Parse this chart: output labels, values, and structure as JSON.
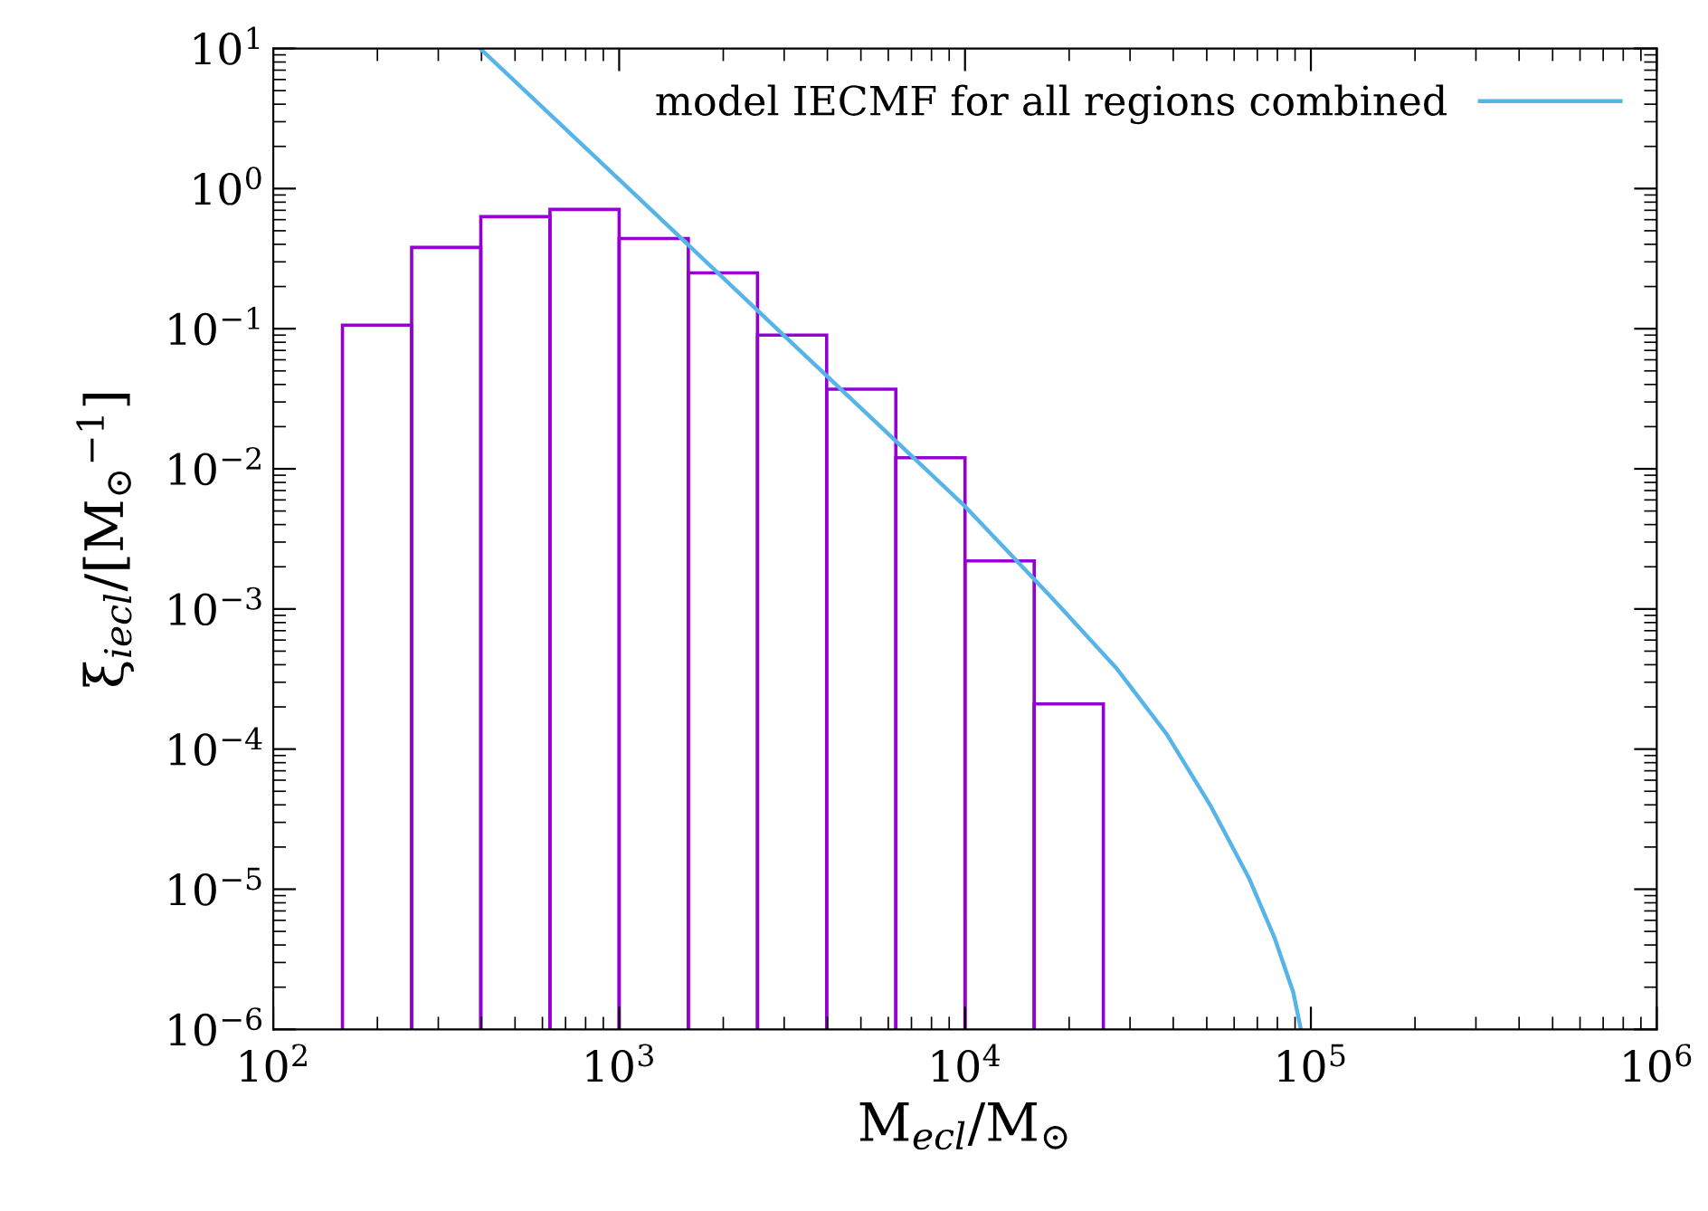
{
  "chart_data": {
    "type": "histogram",
    "xlabel": "M$_{ecl}$/M$_{⊙}$",
    "ylabel": "ξ$_{iecl}$/[M$_{⊙}$$^{−1}$]",
    "bins": [
      158.5,
      251.2,
      398.1,
      631.0,
      1000,
      1584.9,
      2511.9,
      3981.1,
      6309.6,
      10000,
      15848.9,
      25118.9
    ],
    "values": [
      0.106,
      0.38,
      0.63,
      0.71,
      0.44,
      0.25,
      0.09,
      0.037,
      0.012,
      0.0022,
      0.00021
    ],
    "color": "#9400d3",
    "series": [
      {
        "type": "line",
        "name": "model IECMF for all regions combined",
        "color": "#56b4e9",
        "x": [
          396,
          1000,
          3162,
          10000,
          17950,
          27350,
          38280,
          51400,
          66220,
          78520,
          88920,
          93540
        ],
        "values": [
          10,
          1.16,
          0.079,
          0.0054,
          0.00118,
          0.00038,
          0.000128,
          3.9e-05,
          1.2e-05,
          4.5e-06,
          1.84e-06,
          1e-06
        ]
      }
    ],
    "log": "xy",
    "xlim": [
      100,
      1000000
    ],
    "ylim": [
      1e-06,
      10
    ],
    "xticks": [
      {
        "value": 100,
        "label": "10$^{2}$"
      },
      {
        "value": 1000,
        "label": "10$^{3}$"
      },
      {
        "value": 10000,
        "label": "10$^{4}$"
      },
      {
        "value": 100000,
        "label": "10$^{5}$"
      },
      {
        "value": 1000000,
        "label": "10$^{6}$"
      }
    ],
    "yticks": [
      {
        "value": 1e-06,
        "label": "10$^{−6}$"
      },
      {
        "value": 1e-05,
        "label": "10$^{−5}$"
      },
      {
        "value": 0.0001,
        "label": "10$^{−4}$"
      },
      {
        "value": 0.001,
        "label": "10$^{−3}$"
      },
      {
        "value": 0.01,
        "label": "10$^{−2}$"
      },
      {
        "value": 0.1,
        "label": "10$^{−1}$"
      },
      {
        "value": 1,
        "label": "10$^{0}$"
      },
      {
        "value": 10,
        "label": "10$^{1}$"
      }
    ],
    "grid": false,
    "legend": "top right",
    "marker": "none",
    "line_style": "solid"
  }
}
